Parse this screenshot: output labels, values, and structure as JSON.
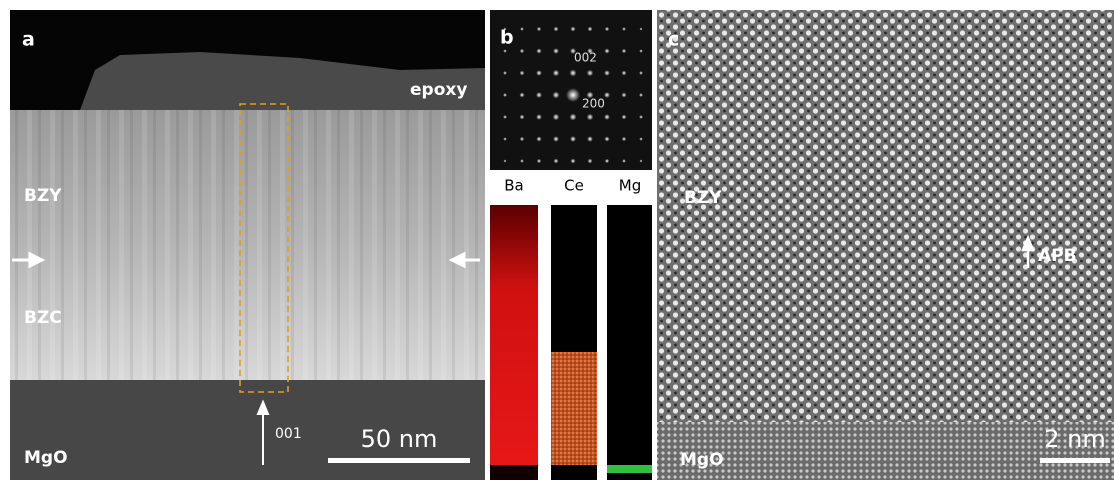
{
  "panels": [
    {
      "letter": "a",
      "labels": [
        "epoxy",
        "BZY",
        "BZC",
        "MgO",
        "001"
      ],
      "scale_bar": "50 nm"
    },
    {
      "letter": "b",
      "labels": [
        "002",
        "200"
      ],
      "maps": [
        "Ba",
        "Ce",
        "Mg"
      ]
    },
    {
      "letter": "c",
      "labels": [
        "BZY",
        "APB",
        "MgO"
      ],
      "scale_bar": "2 nm"
    }
  ]
}
